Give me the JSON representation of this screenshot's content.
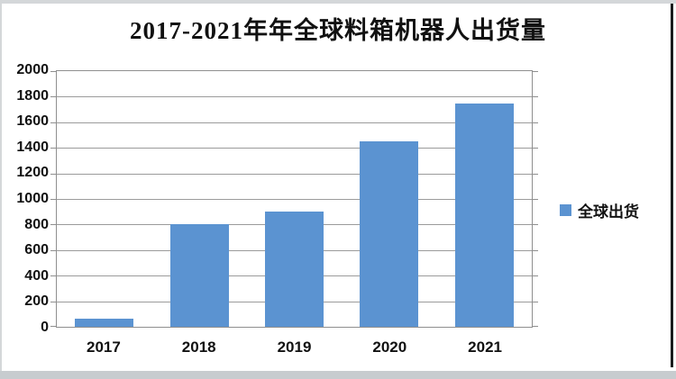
{
  "chart_data": {
    "type": "bar",
    "title": "2017-2021年年全球料箱机器人出货量",
    "categories": [
      "2017",
      "2018",
      "2019",
      "2020",
      "2021"
    ],
    "series": [
      {
        "name": "全球出货",
        "values": [
          60,
          800,
          900,
          1450,
          1750
        ]
      }
    ],
    "xlabel": "",
    "ylabel": "",
    "ylim": [
      0,
      2000
    ],
    "yticks": [
      0,
      200,
      400,
      600,
      800,
      1000,
      1200,
      1400,
      1600,
      1800,
      2000
    ],
    "grid": true,
    "legend_position": "right"
  },
  "legend": {
    "label": "全球出货"
  },
  "colors": {
    "bar": "#5b93d1",
    "grid": "#9b9b9b",
    "border": "#8f8f8f",
    "text": "#111111",
    "frame_top": "#d4d7d9",
    "frame_bottom": "#c7cccf",
    "frame_left": "#d4d7d9",
    "frame_right": "#1a1b1d"
  }
}
